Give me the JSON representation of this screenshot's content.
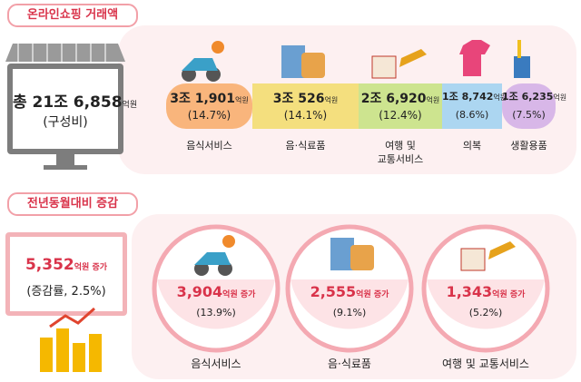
{
  "sales": {
    "title": "온라인쇼핑 거래액",
    "total": {
      "amount": "총 21조 6,858",
      "unit": "억원",
      "note": "(구성비)"
    },
    "items": [
      {
        "amount": "3조 1,901",
        "unit": "억원",
        "share": "(14.7%)",
        "label": [
          "음식서비스"
        ],
        "color": "#f9b57c"
      },
      {
        "amount": "3조 526",
        "unit": "억원",
        "share": "(14.1%)",
        "label": [
          "음·식료품"
        ],
        "color": "#f4df7e"
      },
      {
        "amount": "2조 6,920",
        "unit": "억원",
        "share": "(12.4%)",
        "label": [
          "여행 및",
          "교통서비스"
        ],
        "color": "#cde48f"
      },
      {
        "amount": "1조 8,742",
        "unit": "억원",
        "share": "(8.6%)",
        "label": [
          "의복"
        ],
        "color": "#acd6f1"
      },
      {
        "amount": "1조 6,235",
        "unit": "억원",
        "share": "(7.5%)",
        "label": [
          "생활용품"
        ],
        "color": "#d8b7e8"
      }
    ]
  },
  "change": {
    "title": "전년동월대비 증감",
    "total": {
      "amount": "5,352",
      "unit": "억원 증가",
      "note": "(증감률, 2.5%)"
    },
    "items": [
      {
        "amount": "3,904",
        "unit": "억원 증가",
        "rate": "(13.9%)",
        "label": "음식서비스"
      },
      {
        "amount": "2,555",
        "unit": "억원 증가",
        "rate": "(9.1%)",
        "label": "음·식료품"
      },
      {
        "amount": "1,343",
        "unit": "억원 증가",
        "rate": "(5.2%)",
        "label": "여행 및 교통서비스"
      }
    ]
  }
}
